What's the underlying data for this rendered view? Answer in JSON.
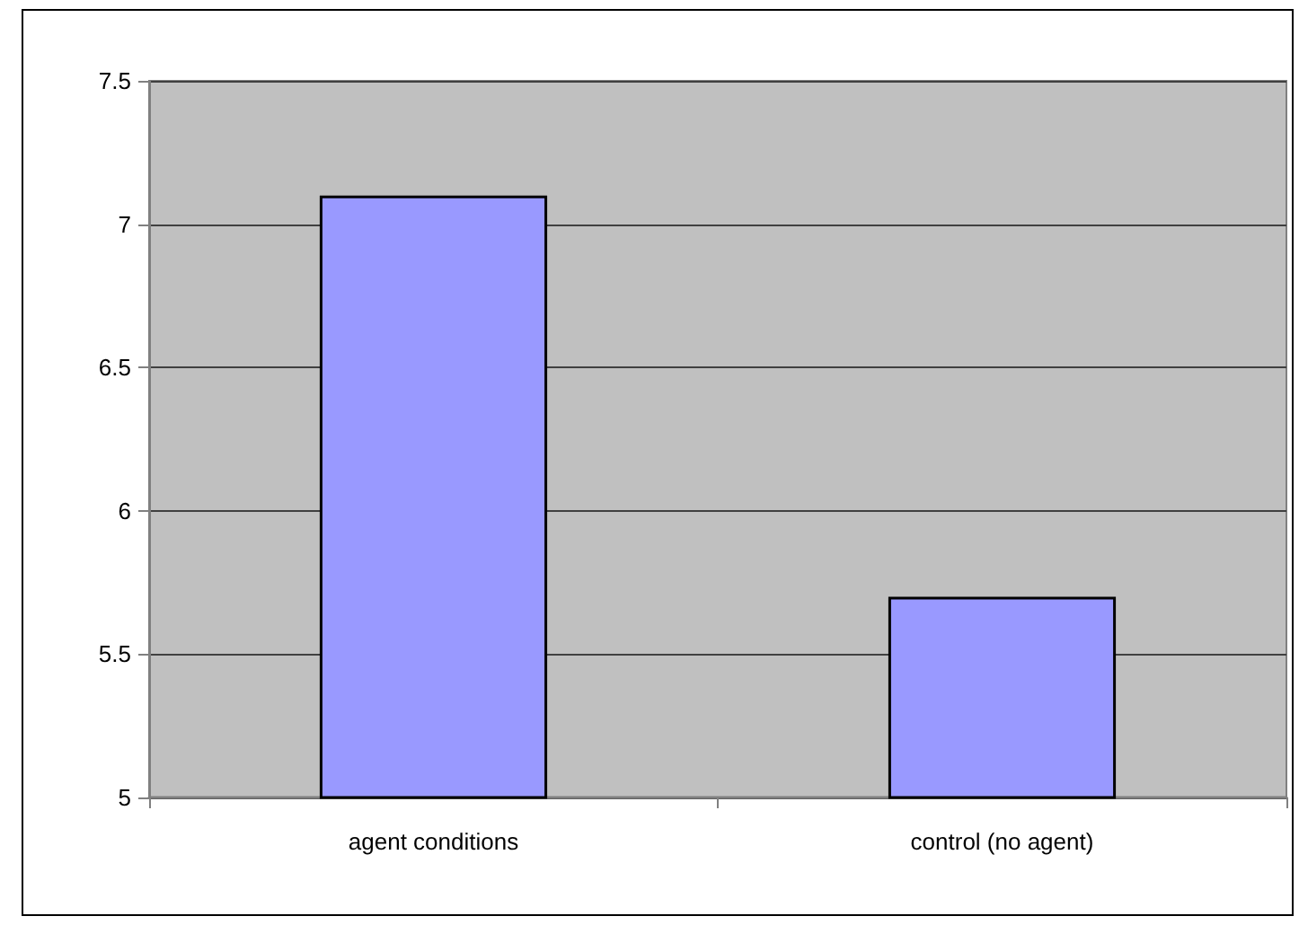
{
  "chart_data": {
    "type": "bar",
    "categories": [
      "agent conditions",
      "control (no agent)"
    ],
    "values": [
      7.1,
      5.7
    ],
    "color": "#9999ff",
    "ylim": [
      5,
      7.5
    ],
    "yticks": [
      5,
      5.5,
      6,
      6.5,
      7,
      7.5
    ],
    "grid": "y"
  }
}
